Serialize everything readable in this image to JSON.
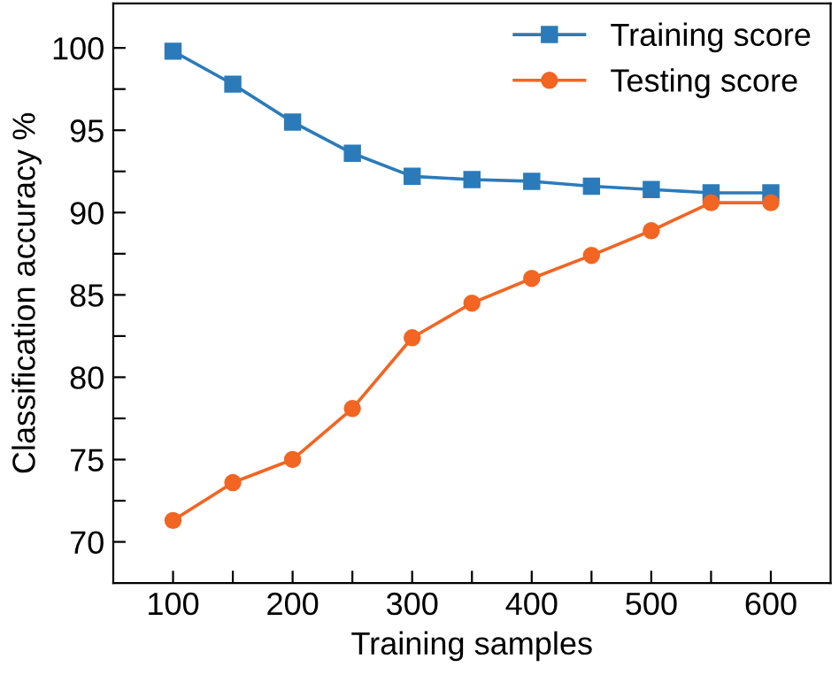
{
  "chart_data": {
    "type": "line",
    "xlabel": "Training samples",
    "ylabel": "Classification accuracy %",
    "x": [
      100,
      150,
      200,
      250,
      300,
      350,
      400,
      450,
      500,
      550,
      600
    ],
    "series": [
      {
        "name": "Training score",
        "color": "#2b7bba",
        "marker": "square",
        "values": [
          99.8,
          97.8,
          95.5,
          93.6,
          92.2,
          92.0,
          91.9,
          91.6,
          91.4,
          91.2,
          91.2
        ]
      },
      {
        "name": "Testing score",
        "color": "#f26522",
        "marker": "circle",
        "values": [
          71.3,
          73.6,
          75.0,
          78.1,
          82.4,
          84.5,
          86.0,
          87.4,
          88.9,
          90.6,
          90.6
        ]
      }
    ],
    "xlim": [
      50,
      650
    ],
    "ylim": [
      67.5,
      102.7
    ],
    "xticks": [
      100,
      {
        "value": 150,
        "label": null
      },
      200,
      {
        "value": 250,
        "label": null
      },
      300,
      {
        "value": 350,
        "label": null
      },
      400,
      {
        "value": 450,
        "label": null
      },
      500,
      {
        "value": 550,
        "label": null
      },
      600
    ],
    "yticks": [
      70,
      {
        "value": 72.5,
        "label": null
      },
      75,
      {
        "value": 77.5,
        "label": null
      },
      80,
      {
        "value": 82.5,
        "label": null
      },
      85,
      {
        "value": 87.5,
        "label": null
      },
      90,
      {
        "value": 92.5,
        "label": null
      },
      95,
      {
        "value": 97.5,
        "label": null
      },
      100
    ],
    "grid": false,
    "legend": "top right",
    "line_style": "solid"
  }
}
